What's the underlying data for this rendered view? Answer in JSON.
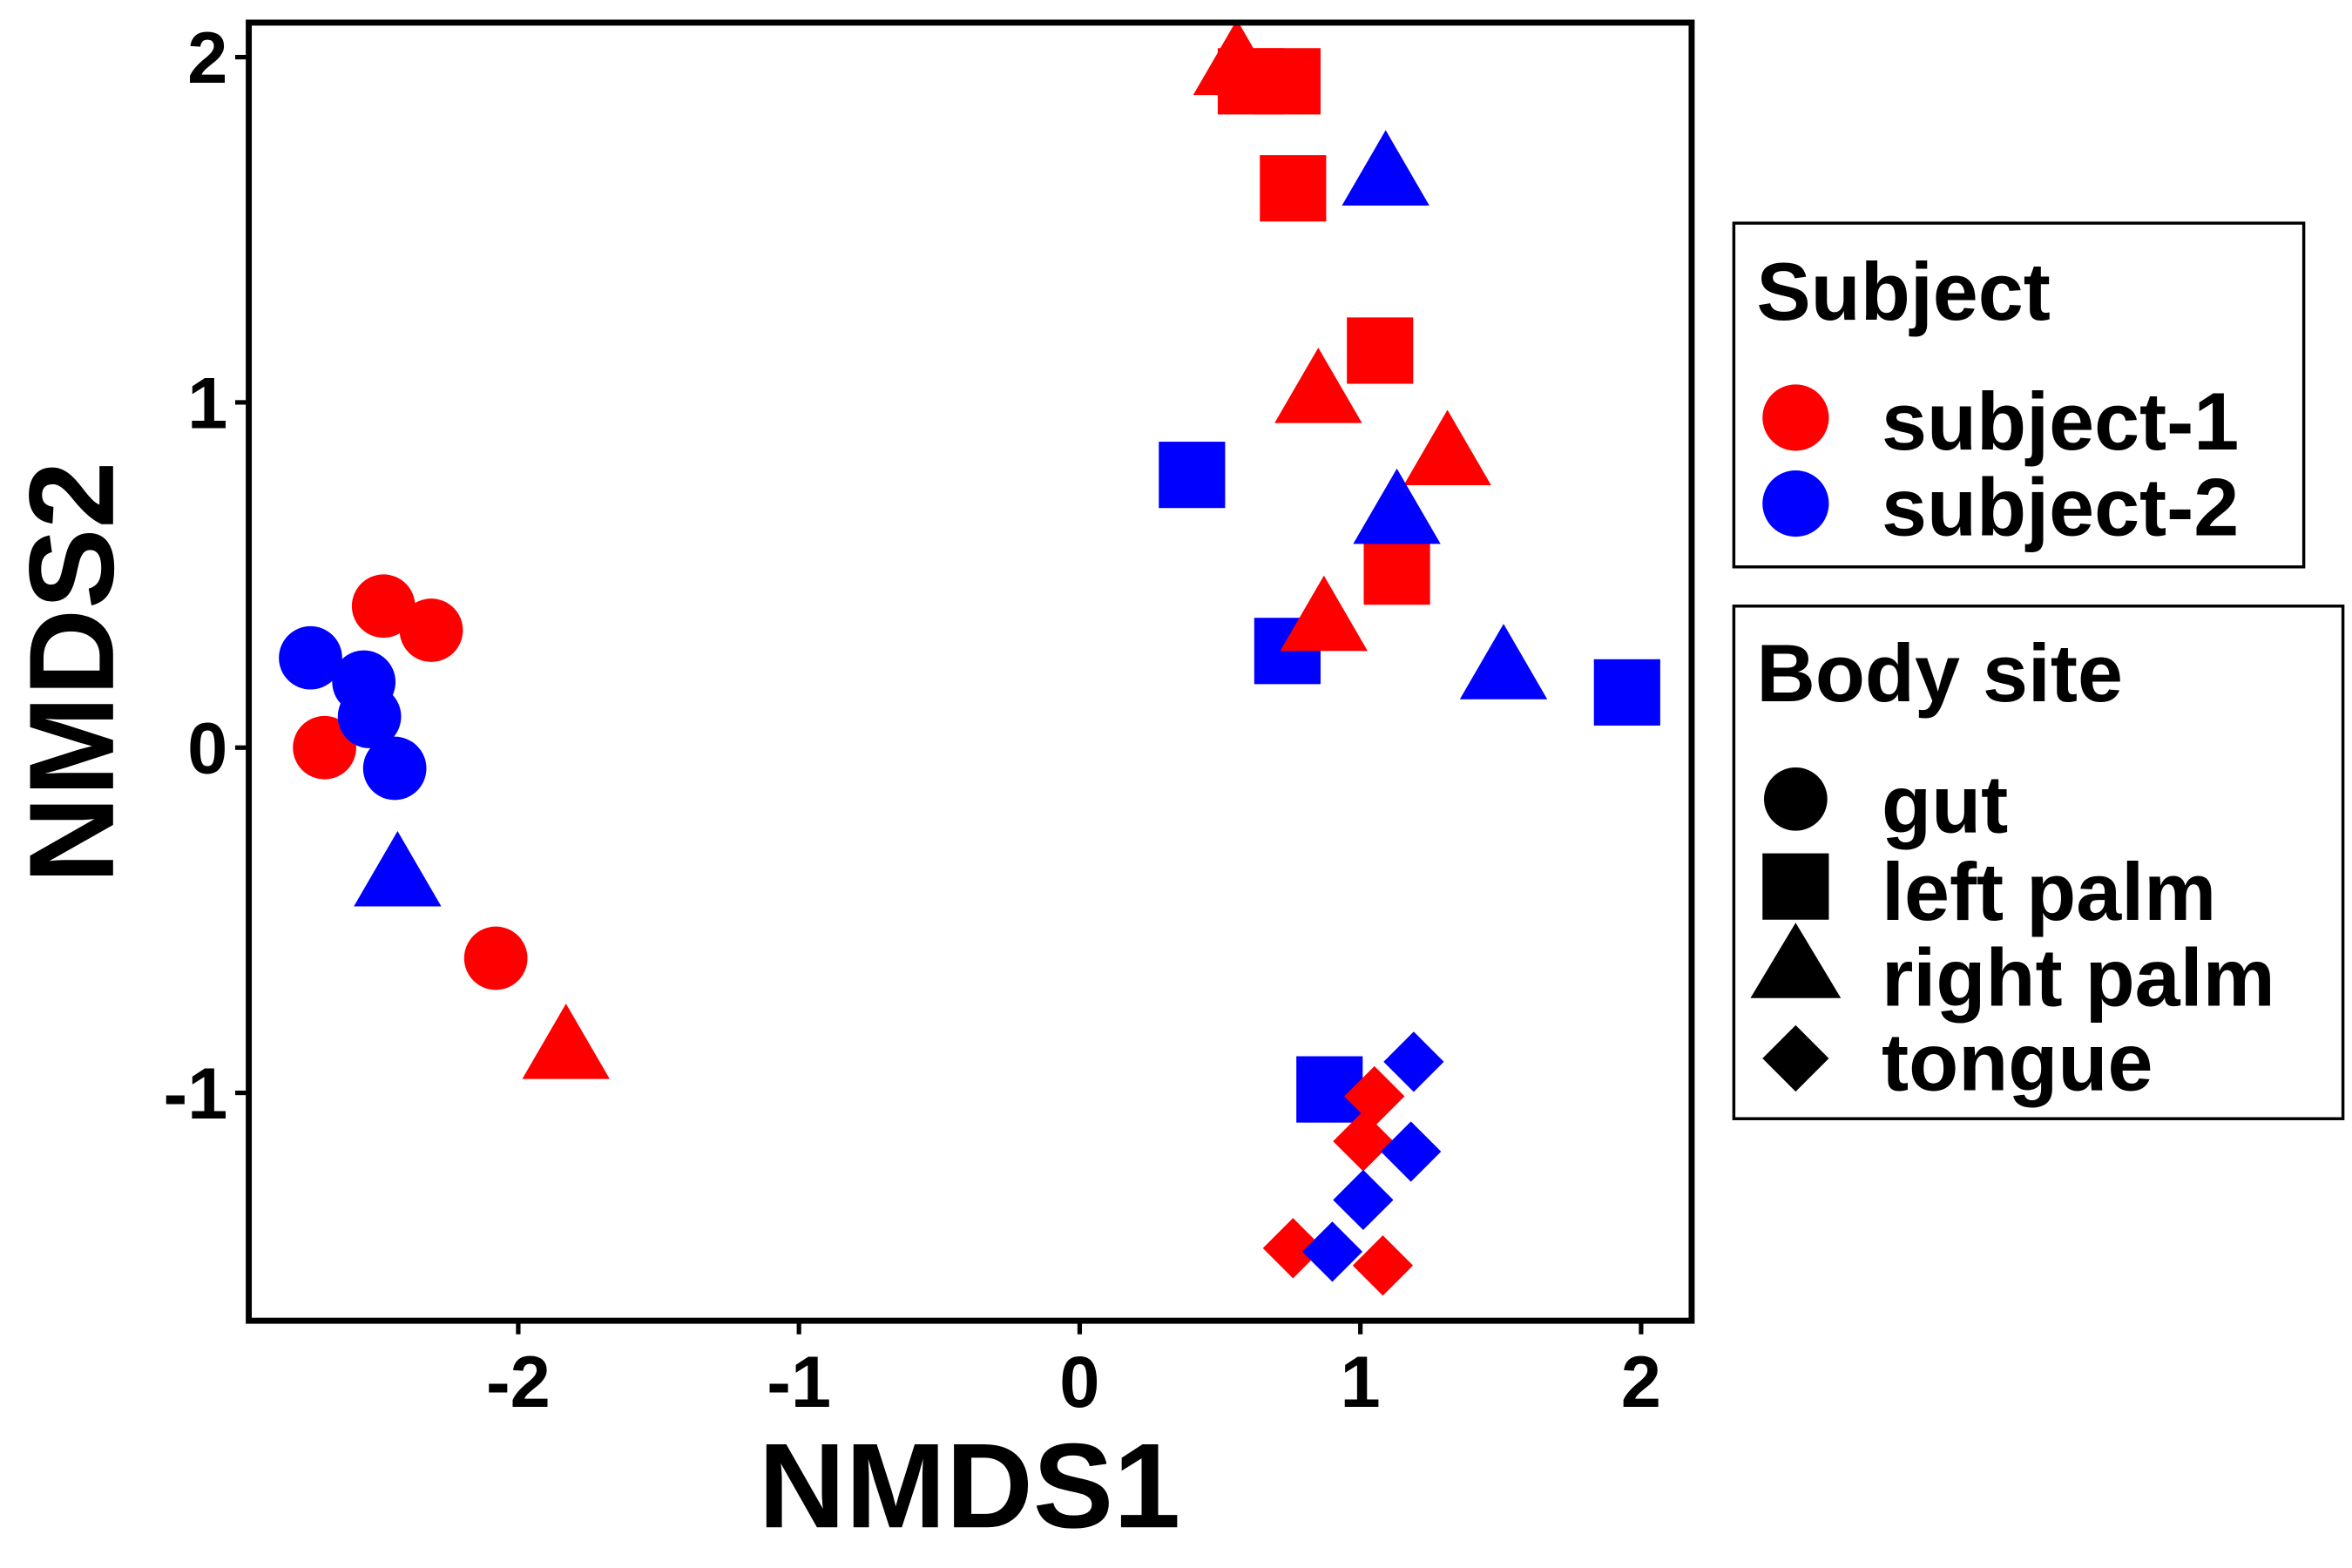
{
  "chart_data": {
    "type": "scatter",
    "xlabel": "NMDS1",
    "ylabel": "NMDS2",
    "xlim": [
      -2.96,
      2.18
    ],
    "ylim": [
      -1.66,
      2.1
    ],
    "xticks": [
      "-2",
      "-1",
      "0",
      "1",
      "2"
    ],
    "yticks": [
      "-1",
      "0",
      "1",
      "2"
    ],
    "xtick_values": [
      -2,
      -1,
      0,
      1,
      2
    ],
    "ytick_values": [
      -1,
      0,
      1,
      2
    ],
    "grid": false,
    "colors": {
      "subject-1": "#ff0000",
      "subject-2": "#0000ff"
    },
    "legend_subject": {
      "title": "Subject",
      "entries": [
        "subject-1",
        "subject-2"
      ]
    },
    "legend_site": {
      "title": "Body site",
      "entries": [
        "gut",
        "left palm",
        "right palm",
        "tongue"
      ],
      "shapes": [
        "circle",
        "square",
        "triangle",
        "diamond"
      ]
    },
    "legend_placement": "right",
    "points": [
      {
        "subject": "subject-1",
        "site": "gut",
        "x": -2.48,
        "y": 0.41
      },
      {
        "subject": "subject-1",
        "site": "gut",
        "x": -2.31,
        "y": 0.34
      },
      {
        "subject": "subject-1",
        "site": "gut",
        "x": -2.69,
        "y": 0.0
      },
      {
        "subject": "subject-1",
        "site": "gut",
        "x": -2.08,
        "y": -0.61
      },
      {
        "subject": "subject-2",
        "site": "gut",
        "x": -2.74,
        "y": 0.26
      },
      {
        "subject": "subject-2",
        "site": "gut",
        "x": -2.55,
        "y": 0.19
      },
      {
        "subject": "subject-2",
        "site": "gut",
        "x": -2.53,
        "y": 0.09
      },
      {
        "subject": "subject-2",
        "site": "gut",
        "x": -2.44,
        "y": -0.06
      },
      {
        "subject": "subject-1",
        "site": "left palm",
        "x": 0.61,
        "y": 1.93
      },
      {
        "subject": "subject-1",
        "site": "left palm",
        "x": 0.74,
        "y": 1.93
      },
      {
        "subject": "subject-1",
        "site": "left palm",
        "x": 0.76,
        "y": 1.62
      },
      {
        "subject": "subject-1",
        "site": "left palm",
        "x": 1.07,
        "y": 1.15
      },
      {
        "subject": "subject-1",
        "site": "left palm",
        "x": 1.13,
        "y": 0.51
      },
      {
        "subject": "subject-2",
        "site": "left palm",
        "x": 0.4,
        "y": 0.79
      },
      {
        "subject": "subject-2",
        "site": "left palm",
        "x": 0.74,
        "y": 0.28
      },
      {
        "subject": "subject-2",
        "site": "left palm",
        "x": 0.89,
        "y": -0.99
      },
      {
        "subject": "subject-2",
        "site": "left palm",
        "x": 1.95,
        "y": 0.16
      },
      {
        "subject": "subject-1",
        "site": "right palm",
        "x": 0.56,
        "y": 1.96
      },
      {
        "subject": "subject-1",
        "site": "right palm",
        "x": 0.85,
        "y": 1.01
      },
      {
        "subject": "subject-1",
        "site": "right palm",
        "x": 1.31,
        "y": 0.83
      },
      {
        "subject": "subject-1",
        "site": "right palm",
        "x": 0.87,
        "y": 0.35
      },
      {
        "subject": "subject-1",
        "site": "right palm",
        "x": -1.83,
        "y": -0.89
      },
      {
        "subject": "subject-2",
        "site": "right palm",
        "x": 1.09,
        "y": 1.64
      },
      {
        "subject": "subject-2",
        "site": "right palm",
        "x": 1.13,
        "y": 0.66
      },
      {
        "subject": "subject-2",
        "site": "right palm",
        "x": 1.51,
        "y": 0.21
      },
      {
        "subject": "subject-2",
        "site": "right palm",
        "x": -2.43,
        "y": -0.39
      },
      {
        "subject": "subject-1",
        "site": "tongue",
        "x": 1.05,
        "y": -1.01
      },
      {
        "subject": "subject-1",
        "site": "tongue",
        "x": 1.01,
        "y": -1.14
      },
      {
        "subject": "subject-1",
        "site": "tongue",
        "x": 0.76,
        "y": -1.45
      },
      {
        "subject": "subject-1",
        "site": "tongue",
        "x": 1.08,
        "y": -1.5
      },
      {
        "subject": "subject-2",
        "site": "tongue",
        "x": 1.19,
        "y": -0.91
      },
      {
        "subject": "subject-2",
        "site": "tongue",
        "x": 1.18,
        "y": -1.17
      },
      {
        "subject": "subject-2",
        "site": "tongue",
        "x": 1.01,
        "y": -1.31
      },
      {
        "subject": "subject-2",
        "site": "tongue",
        "x": 0.9,
        "y": -1.46
      }
    ]
  }
}
